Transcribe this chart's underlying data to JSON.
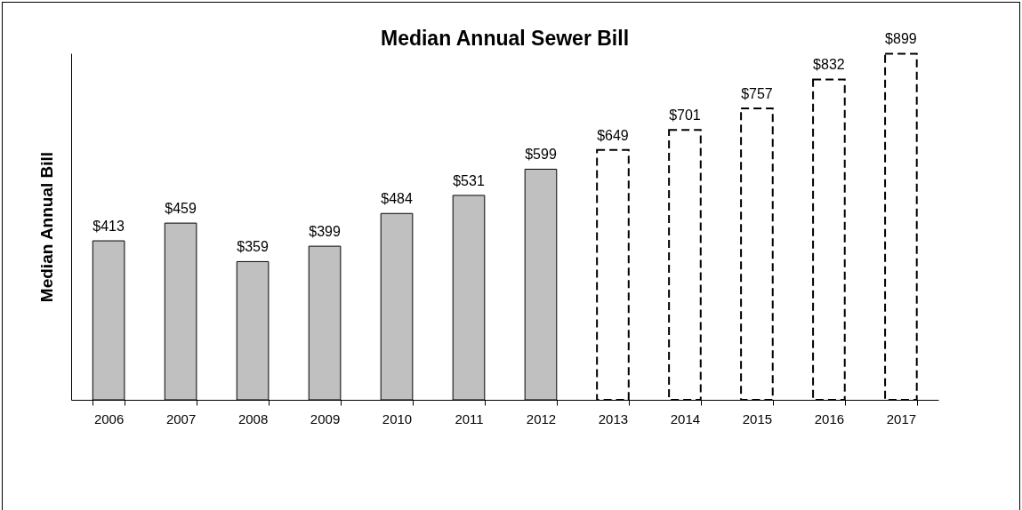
{
  "chart_data": {
    "type": "bar",
    "title": "Median Annual Sewer Bill",
    "ylabel": "Median Annual Bill",
    "categories": [
      "2006",
      "2007",
      "2008",
      "2009",
      "2010",
      "2011",
      "2012",
      "2013",
      "2014",
      "2015",
      "2016",
      "2017"
    ],
    "series": [
      {
        "color": "#c0c0c0",
        "line_style": "solid",
        "values": [
          413,
          459,
          359,
          399,
          484,
          531,
          599,
          null,
          null,
          null,
          null,
          null
        ],
        "value_labels": [
          "$413",
          "$459",
          "$359",
          "$399",
          "$484",
          "$531",
          "$599",
          null,
          null,
          null,
          null,
          null
        ]
      },
      {
        "color": "#ffffff",
        "line_style": "dashed",
        "values": [
          null,
          null,
          null,
          null,
          null,
          null,
          null,
          649,
          701,
          757,
          832,
          899
        ],
        "value_labels": [
          null,
          null,
          null,
          null,
          null,
          null,
          null,
          "$649",
          "$701",
          "$757",
          "$832",
          "$899"
        ]
      }
    ]
  }
}
